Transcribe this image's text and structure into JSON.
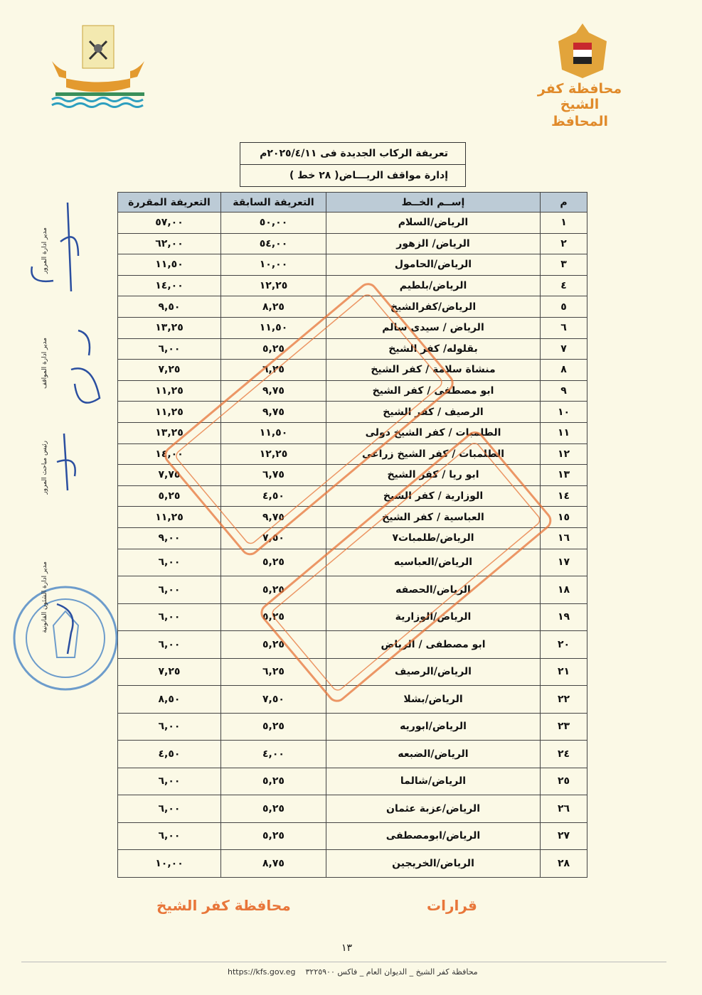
{
  "header": {
    "governorate": "محافظة كفر الشيخ",
    "office": "المحافظ"
  },
  "title_box": {
    "title": "تعريفة الركاب الجديدة فى ٢٠٢٥/٤/١١م",
    "subtitle": "إدارة مواقف الريـــاض( ٢٨ خط )"
  },
  "table": {
    "columns": [
      "م",
      "إســم الخــط",
      "التعريفة السابقة",
      "التعريفة المقررة"
    ],
    "rows": [
      [
        "١",
        "الرياض/السلام",
        "٥٠,٠٠",
        "٥٧,٠٠"
      ],
      [
        "٢",
        "الرياض/ الزهور",
        "٥٤,٠٠",
        "٦٢,٠٠"
      ],
      [
        "٣",
        "الرياض/الحامول",
        "١٠,٠٠",
        "١١,٥٠"
      ],
      [
        "٤",
        "الرياض/بلطيم",
        "١٢,٢٥",
        "١٤,٠٠"
      ],
      [
        "٥",
        "الرياض/كفرالشيخ",
        "٨,٢٥",
        "٩,٥٠"
      ],
      [
        "٦",
        "الرياض / سيدى سالم",
        "١١,٥٠",
        "١٣,٢٥"
      ],
      [
        "٧",
        "بقلوله/ كفر الشيخ",
        "٥,٢٥",
        "٦,٠٠"
      ],
      [
        "٨",
        "منشاة سلامة / كفر الشيخ",
        "٦,٢٥",
        "٧,٢٥"
      ],
      [
        "٩",
        "ابو مصطفى / كفر الشيخ",
        "٩,٧٥",
        "١١,٢٥"
      ],
      [
        "١٠",
        "الرصيف / كفر الشيخ",
        "٩,٧٥",
        "١١,٢٥"
      ],
      [
        "١١",
        "الطلمبات / كفر الشيخ دولى",
        "١١,٥٠",
        "١٣,٢٥"
      ],
      [
        "١٢",
        "الطلمبات / كفر الشيخ زراعى",
        "١٢,٢٥",
        "١٤,٠٠"
      ],
      [
        "١٣",
        "ابو ريا / كفر الشيخ",
        "٦,٧٥",
        "٧,٧٥"
      ],
      [
        "١٤",
        "الوزارية / كفر الشيخ",
        "٤,٥٠",
        "٥,٢٥"
      ],
      [
        "١٥",
        "العباسية / كفر الشيخ",
        "٩,٧٥",
        "١١,٢٥"
      ],
      [
        "١٦",
        "الرياض/طلمبات٧",
        "٧,٥٠",
        "٩,٠٠"
      ],
      [
        "١٧",
        "الرياض/العباسيه",
        "٥,٢٥",
        "٦,٠٠"
      ],
      [
        "١٨",
        "الرياض/الحصفه",
        "٥,٢٥",
        "٦,٠٠"
      ],
      [
        "١٩",
        "الرياض/الوزارية",
        "٥,٢٥",
        "٦,٠٠"
      ],
      [
        "٢٠",
        "ابو مصطفى / الرياض",
        "٥,٢٥",
        "٦,٠٠"
      ],
      [
        "٢١",
        "الرياض/الرصيف",
        "٦,٢٥",
        "٧,٢٥"
      ],
      [
        "٢٢",
        "الرياض/بشلا",
        "٧,٥٠",
        "٨,٥٠"
      ],
      [
        "٢٣",
        "الرياض/ابوريه",
        "٥,٢٥",
        "٦,٠٠"
      ],
      [
        "٢٤",
        "الرياض/الضبعه",
        "٤,٠٠",
        "٤,٥٠"
      ],
      [
        "٢٥",
        "الرياض/شالما",
        "٥,٢٥",
        "٦,٠٠"
      ],
      [
        "٢٦",
        "الرياض/عزبة عثمان",
        "٥,٢٥",
        "٦,٠٠"
      ],
      [
        "٢٧",
        "الرياض/ابومصطفى",
        "٥,٢٥",
        "٦,٠٠"
      ],
      [
        "٢٨",
        "الرياض/الخريجين",
        "٨,٧٥",
        "١٠,٠٠"
      ]
    ]
  },
  "signatures": [
    "مدير ادارة المرور",
    "مدير ادارة المواقف",
    "رئيس مباحث المرور",
    "مدير ادارة الشئون القانونية"
  ],
  "stamp_text": [
    "محافظة كفر الشيخ",
    "قرارات"
  ],
  "page_number": "١٣",
  "footer": {
    "text": "محافظة كفر الشيخ _ الديوان العام _ فاكس ٣٢٢٥٩٠٠",
    "url": "https://kfs.gov.eg"
  },
  "colors": {
    "stamp": "#e8763a",
    "header_fill": "#bccbd6",
    "emblem_text": "#e08a2a",
    "seal": "#4a86c5"
  }
}
